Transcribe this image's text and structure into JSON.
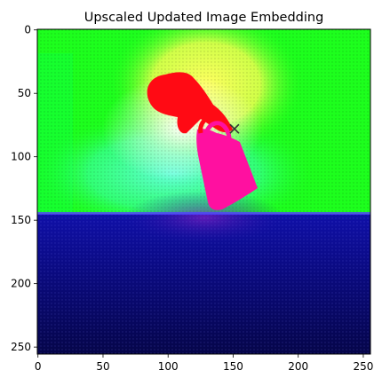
{
  "chart_data": {
    "type": "heatmap",
    "title": "Upscaled Updated Image Embedding",
    "xlabel": "",
    "ylabel": "",
    "xlim": [
      0,
      255
    ],
    "ylim": [
      255,
      0
    ],
    "x_ticks": [
      0,
      50,
      100,
      150,
      200,
      250
    ],
    "y_ticks": [
      0,
      50,
      100,
      150,
      200,
      250
    ],
    "grid": false,
    "colors": {
      "background_green": "#1dff1d",
      "glow_yellow": "#ffff4d",
      "glow_cyan": "#5dffe0",
      "object_red": "#ff0a14",
      "object_pink": "#ff10a0",
      "lower_navy": "#0b0b8c",
      "lower_dark": "#050540",
      "marker": "#333333"
    },
    "regions": [
      {
        "name": "upper-background",
        "y_range": [
          0,
          142
        ]
      },
      {
        "name": "lower-background",
        "y_range": [
          142,
          255
        ]
      }
    ],
    "marker": {
      "x": 151,
      "y": 78,
      "symbol": "x"
    }
  }
}
